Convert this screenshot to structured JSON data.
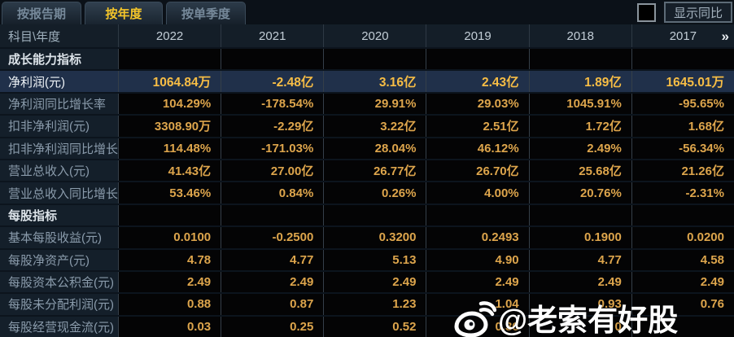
{
  "tabs": [
    {
      "label": "按报告期",
      "active": false
    },
    {
      "label": "按年度",
      "active": true
    },
    {
      "label": "按单季度",
      "active": false
    }
  ],
  "controls": {
    "show_yoy_label": "显示同比",
    "checkbox_checked": false
  },
  "table": {
    "corner_label": "科目\\年度",
    "years": [
      "2022",
      "2021",
      "2020",
      "2019",
      "2018",
      "2017"
    ],
    "more_icon": "»",
    "rows": [
      {
        "type": "section",
        "label": "成长能力指标"
      },
      {
        "type": "data",
        "highlight": true,
        "label": "净利润(元)",
        "values": [
          "1064.84万",
          "-2.48亿",
          "3.16亿",
          "2.43亿",
          "1.89亿",
          "1645.01万"
        ]
      },
      {
        "type": "data",
        "highlight": false,
        "label": "净利润同比增长率",
        "values": [
          "104.29%",
          "-178.54%",
          "29.91%",
          "29.03%",
          "1045.91%",
          "-95.65%"
        ]
      },
      {
        "type": "data",
        "highlight": false,
        "label": "扣非净利润(元)",
        "values": [
          "3308.90万",
          "-2.29亿",
          "3.22亿",
          "2.51亿",
          "1.72亿",
          "1.68亿"
        ]
      },
      {
        "type": "data",
        "highlight": false,
        "label": "扣非净利润同比增长率",
        "values": [
          "114.48%",
          "-171.03%",
          "28.04%",
          "46.12%",
          "2.49%",
          "-56.34%"
        ]
      },
      {
        "type": "data",
        "highlight": false,
        "label": "营业总收入(元)",
        "values": [
          "41.43亿",
          "27.00亿",
          "26.77亿",
          "26.70亿",
          "25.68亿",
          "21.26亿"
        ]
      },
      {
        "type": "data",
        "highlight": false,
        "label": "营业总收入同比增长率",
        "values": [
          "53.46%",
          "0.84%",
          "0.26%",
          "4.00%",
          "20.76%",
          "-2.31%"
        ]
      },
      {
        "type": "section",
        "label": "每股指标"
      },
      {
        "type": "data",
        "highlight": false,
        "label": "基本每股收益(元)",
        "values": [
          "0.0100",
          "-0.2500",
          "0.3200",
          "0.2493",
          "0.1900",
          "0.0200"
        ]
      },
      {
        "type": "data",
        "highlight": false,
        "label": "每股净资产(元)",
        "values": [
          "4.78",
          "4.77",
          "5.13",
          "4.90",
          "4.77",
          "4.58"
        ]
      },
      {
        "type": "data",
        "highlight": false,
        "label": "每股资本公积金(元)",
        "values": [
          "2.49",
          "2.49",
          "2.49",
          "2.49",
          "2.49",
          "2.49"
        ]
      },
      {
        "type": "data",
        "highlight": false,
        "label": "每股未分配利润(元)",
        "values": [
          "0.88",
          "0.87",
          "1.23",
          "1.04",
          "0.93",
          "0.76"
        ]
      },
      {
        "type": "data",
        "highlight": false,
        "label": "每股经营现金流(元)",
        "values": [
          "0.03",
          "0.25",
          "0.52",
          "0.36",
          "0",
          ""
        ]
      }
    ]
  },
  "watermark": {
    "text": "@老索有好股",
    "icon": "weibo-icon"
  },
  "colors": {
    "accent_gold": "#dda54c",
    "highlight_gold": "#f7bd45",
    "tab_active_text": "#f5c62a",
    "highlight_row_bg": "#20304a",
    "label_column_bg": "#141f2a",
    "header_bg": "#141e28"
  }
}
